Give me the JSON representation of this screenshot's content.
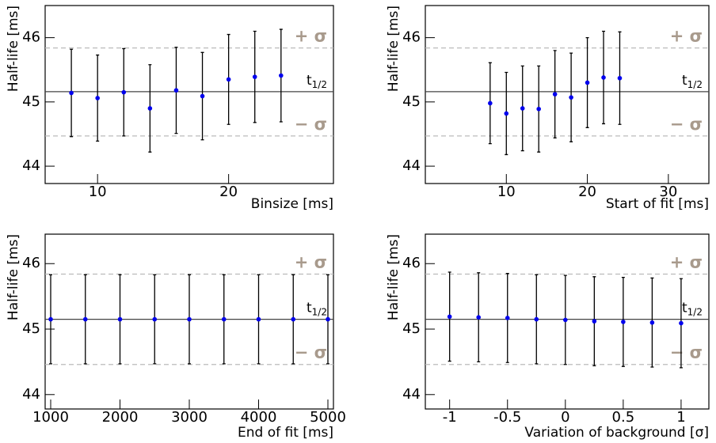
{
  "chart_data": [
    {
      "type": "scatter",
      "ylabel": "Half-life [ms]",
      "xlabel": "Binsize [ms]",
      "x": [
        8,
        10,
        12,
        14,
        16,
        18,
        20,
        22,
        24
      ],
      "values": [
        45.14,
        45.06,
        45.15,
        44.9,
        45.18,
        45.09,
        45.35,
        45.39,
        45.41
      ],
      "errors": [
        0.68,
        0.67,
        0.68,
        0.68,
        0.67,
        0.68,
        0.7,
        0.71,
        0.72
      ],
      "color": "#0000ee",
      "xlim": [
        6,
        28
      ],
      "xticks": [
        10,
        20
      ],
      "ylim": [
        43.73,
        46.5
      ],
      "yticks": [
        44,
        45,
        46
      ],
      "reference": {
        "value": 45.16,
        "label": "t",
        "sub": "1/2"
      },
      "plus": {
        "value": 45.84,
        "label": "+ σ"
      },
      "minus": {
        "value": 44.47,
        "label": "− σ"
      }
    },
    {
      "type": "scatter",
      "ylabel": "Half-life [ms]",
      "xlabel": "Start of fit [ms]",
      "x": [
        8,
        10,
        12,
        14,
        16,
        18,
        20,
        22,
        24
      ],
      "values": [
        44.98,
        44.82,
        44.9,
        44.89,
        45.12,
        45.07,
        45.3,
        45.38,
        45.37
      ],
      "errors": [
        0.63,
        0.64,
        0.66,
        0.67,
        0.68,
        0.69,
        0.7,
        0.72,
        0.72
      ],
      "color": "#0000ee",
      "xlim": [
        0,
        35
      ],
      "xticks": [
        10,
        20,
        30
      ],
      "ylim": [
        43.73,
        46.5
      ],
      "yticks": [
        44,
        45,
        46
      ],
      "reference": {
        "value": 45.16,
        "label": "t",
        "sub": "1/2"
      },
      "plus": {
        "value": 45.84,
        "label": "+ σ"
      },
      "minus": {
        "value": 44.47,
        "label": "− σ"
      }
    },
    {
      "type": "scatter",
      "ylabel": "Half-life [ms]",
      "xlabel": "End of fit [ms]",
      "x": [
        1000,
        1500,
        2000,
        2500,
        3000,
        3500,
        4000,
        4500,
        5000
      ],
      "values": [
        45.15,
        45.15,
        45.15,
        45.15,
        45.15,
        45.15,
        45.15,
        45.15,
        45.15
      ],
      "errors": [
        0.68,
        0.68,
        0.68,
        0.68,
        0.68,
        0.68,
        0.68,
        0.68,
        0.68
      ],
      "color": "#0000ee",
      "xlim": [
        920,
        5080
      ],
      "xticks": [
        1000,
        2000,
        3000,
        4000,
        5000
      ],
      "ylim": [
        43.78,
        46.45
      ],
      "yticks": [
        44,
        45,
        46
      ],
      "reference": {
        "value": 45.15,
        "label": "t",
        "sub": "1/2"
      },
      "plus": {
        "value": 45.84,
        "label": "+ σ"
      },
      "minus": {
        "value": 44.46,
        "label": "− σ"
      }
    },
    {
      "type": "scatter",
      "ylabel": "Half-life [ms]",
      "xlabel": "Variation of background [σ]",
      "x": [
        -1,
        -0.75,
        -0.5,
        -0.25,
        0,
        0.25,
        0.5,
        0.75,
        1
      ],
      "values": [
        45.19,
        45.18,
        45.17,
        45.15,
        45.14,
        45.12,
        45.11,
        45.1,
        45.09
      ],
      "errors": [
        0.68,
        0.68,
        0.68,
        0.68,
        0.68,
        0.68,
        0.68,
        0.68,
        0.68
      ],
      "color": "#0000ee",
      "xlim": [
        -1.21,
        1.24
      ],
      "xticks": [
        -1,
        -0.5,
        0,
        0.5,
        1
      ],
      "ylim": [
        43.78,
        46.45
      ],
      "yticks": [
        44,
        45,
        46
      ],
      "reference": {
        "value": 45.15,
        "label": "t",
        "sub": "1/2"
      },
      "plus": {
        "value": 45.84,
        "label": "+ σ"
      },
      "minus": {
        "value": 44.46,
        "label": "− σ"
      }
    }
  ]
}
